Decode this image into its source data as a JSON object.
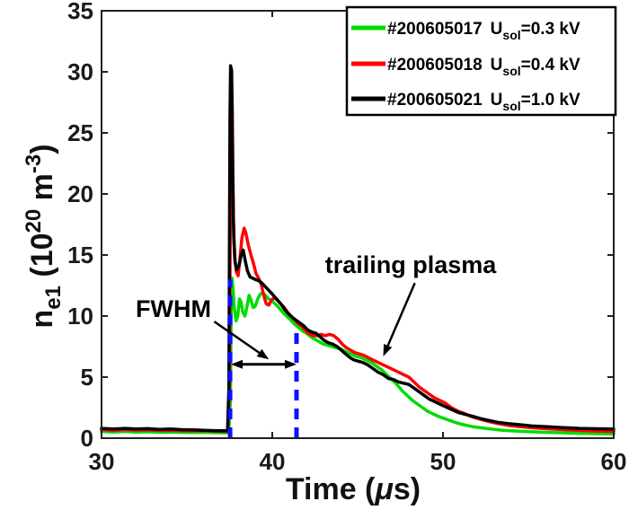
{
  "figure": {
    "background": "#ffffff",
    "axis_color": "#202020",
    "dash_color": "#1010FF"
  },
  "labels": {
    "xlabel_pre": "Time (",
    "xlabel_mu": "μ",
    "xlabel_post": "s)",
    "ylabel_n": "n",
    "ylabel_sub": "e1",
    "ylabel_open": " (10",
    "ylabel_exp": "20",
    "ylabel_m": " m",
    "ylabel_exp2": "-3",
    "ylabel_close": ")"
  },
  "legend": {
    "items": [
      {
        "shot": "#200605017",
        "u": "U",
        "sub": "sol",
        "value": "=0.3 kV",
        "color": "#00DC00"
      },
      {
        "shot": "#200605018",
        "u": "U",
        "sub": "sol",
        "value": "=0.4 kV",
        "color": "#FF0000"
      },
      {
        "shot": "#200605021",
        "u": "U",
        "sub": "sol",
        "value": "=1.0 kV",
        "color": "#000000"
      }
    ]
  },
  "chart_data": {
    "type": "line",
    "title": "",
    "xlabel": "Time (μs)",
    "ylabel": "n_e1 (10^20 m^-3)",
    "xlim": [
      30,
      60
    ],
    "ylim": [
      0,
      35
    ],
    "xticks": [
      30,
      40,
      50,
      60
    ],
    "yticks": [
      0,
      5,
      10,
      15,
      20,
      25,
      30,
      35
    ],
    "grid": false,
    "legend_position": "top-right",
    "series": [
      {
        "id": "green-0.3kV",
        "name": "#200605017 Usol=0.3 kV",
        "color": "#00DC00",
        "points": [
          [
            30,
            0.55
          ],
          [
            30.7,
            0.5
          ],
          [
            31.4,
            0.55
          ],
          [
            32,
            0.5
          ],
          [
            32.7,
            0.52
          ],
          [
            33.4,
            0.48
          ],
          [
            34,
            0.5
          ],
          [
            34.7,
            0.48
          ],
          [
            35.4,
            0.46
          ],
          [
            36,
            0.48
          ],
          [
            36.6,
            0.45
          ],
          [
            37.1,
            0.44
          ],
          [
            37.45,
            0.44
          ],
          [
            37.55,
            3
          ],
          [
            37.6,
            11.5
          ],
          [
            37.64,
            13.1
          ],
          [
            37.7,
            12.2
          ],
          [
            37.78,
            10.6
          ],
          [
            37.88,
            9.6
          ],
          [
            37.98,
            10.0
          ],
          [
            38.08,
            11.4
          ],
          [
            38.16,
            11.2
          ],
          [
            38.28,
            10.3
          ],
          [
            38.4,
            10.0
          ],
          [
            38.52,
            10.8
          ],
          [
            38.64,
            11.7
          ],
          [
            38.76,
            11.3
          ],
          [
            38.88,
            10.7
          ],
          [
            39.0,
            10.8
          ],
          [
            39.15,
            11.4
          ],
          [
            39.3,
            11.8
          ],
          [
            39.45,
            11.9
          ],
          [
            39.6,
            11.7
          ],
          [
            39.8,
            11.4
          ],
          [
            40.0,
            11.2
          ],
          [
            40.25,
            10.9
          ],
          [
            40.5,
            10.5
          ],
          [
            40.75,
            10.1
          ],
          [
            41.0,
            9.8
          ],
          [
            41.25,
            9.4
          ],
          [
            41.5,
            9.1
          ],
          [
            41.75,
            8.8
          ],
          [
            42.0,
            8.6
          ],
          [
            42.25,
            8.3
          ],
          [
            42.5,
            8.1
          ],
          [
            42.75,
            7.9
          ],
          [
            43.0,
            7.7
          ],
          [
            43.25,
            7.6
          ],
          [
            43.5,
            7.5
          ],
          [
            43.75,
            7.4
          ],
          [
            44.0,
            7.3
          ],
          [
            44.3,
            7.1
          ],
          [
            44.6,
            6.9
          ],
          [
            44.9,
            6.7
          ],
          [
            45.2,
            6.6
          ],
          [
            45.5,
            6.4
          ],
          [
            45.8,
            6.2
          ],
          [
            46.1,
            5.9
          ],
          [
            46.4,
            5.6
          ],
          [
            46.7,
            5.2
          ],
          [
            47.0,
            4.8
          ],
          [
            47.3,
            4.4
          ],
          [
            47.6,
            3.9
          ],
          [
            47.9,
            3.5
          ],
          [
            48.2,
            3.1
          ],
          [
            48.5,
            2.8
          ],
          [
            48.8,
            2.5
          ],
          [
            49.1,
            2.2
          ],
          [
            49.4,
            2.0
          ],
          [
            49.7,
            1.8
          ],
          [
            50.0,
            1.65
          ],
          [
            50.4,
            1.45
          ],
          [
            50.8,
            1.25
          ],
          [
            51.2,
            1.1
          ],
          [
            51.7,
            0.95
          ],
          [
            52.2,
            0.85
          ],
          [
            52.8,
            0.75
          ],
          [
            53.5,
            0.65
          ],
          [
            54.3,
            0.58
          ],
          [
            55.2,
            0.52
          ],
          [
            56,
            0.48
          ],
          [
            57,
            0.44
          ],
          [
            58,
            0.4
          ],
          [
            59,
            0.37
          ],
          [
            60,
            0.35
          ]
        ]
      },
      {
        "id": "red-0.4kV",
        "name": "#200605018 Usol=0.4 kV",
        "color": "#FF0000",
        "points": [
          [
            30,
            0.7
          ],
          [
            30.7,
            0.65
          ],
          [
            31.4,
            0.7
          ],
          [
            32,
            0.66
          ],
          [
            32.7,
            0.68
          ],
          [
            33.4,
            0.63
          ],
          [
            34,
            0.65
          ],
          [
            34.7,
            0.62
          ],
          [
            35.4,
            0.6
          ],
          [
            36,
            0.6
          ],
          [
            36.6,
            0.58
          ],
          [
            37.1,
            0.56
          ],
          [
            37.4,
            0.55
          ],
          [
            37.5,
            5
          ],
          [
            37.56,
            24
          ],
          [
            37.6,
            30.2
          ],
          [
            37.66,
            27
          ],
          [
            37.72,
            18
          ],
          [
            37.8,
            14.8
          ],
          [
            37.9,
            13.6
          ],
          [
            38.0,
            13.3
          ],
          [
            38.1,
            14.6
          ],
          [
            38.22,
            16.4
          ],
          [
            38.35,
            17.2
          ],
          [
            38.45,
            16.8
          ],
          [
            38.6,
            15.8
          ],
          [
            38.75,
            15.0
          ],
          [
            38.9,
            14.3
          ],
          [
            39.05,
            13.5
          ],
          [
            39.2,
            13.1
          ],
          [
            39.35,
            12.6
          ],
          [
            39.5,
            11.7
          ],
          [
            39.65,
            11.0
          ],
          [
            39.8,
            10.9
          ],
          [
            39.95,
            11.3
          ],
          [
            40.1,
            11.5
          ],
          [
            40.3,
            11.3
          ],
          [
            40.5,
            11.0
          ],
          [
            40.7,
            10.7
          ],
          [
            40.9,
            10.3
          ],
          [
            41.1,
            10.0
          ],
          [
            41.3,
            9.7
          ],
          [
            41.5,
            9.4
          ],
          [
            41.7,
            9.2
          ],
          [
            41.9,
            8.9
          ],
          [
            42.1,
            8.6
          ],
          [
            42.35,
            8.4
          ],
          [
            42.6,
            8.4
          ],
          [
            42.85,
            8.5
          ],
          [
            43.1,
            8.4
          ],
          [
            43.35,
            8.5
          ],
          [
            43.6,
            8.4
          ],
          [
            43.85,
            8.1
          ],
          [
            44.1,
            7.7
          ],
          [
            44.35,
            7.4
          ],
          [
            44.6,
            7.2
          ],
          [
            44.85,
            7.0
          ],
          [
            45.1,
            6.9
          ],
          [
            45.35,
            6.8
          ],
          [
            45.6,
            6.6
          ],
          [
            45.9,
            6.4
          ],
          [
            46.2,
            6.2
          ],
          [
            46.5,
            6.0
          ],
          [
            46.8,
            5.8
          ],
          [
            47.1,
            5.6
          ],
          [
            47.4,
            5.4
          ],
          [
            47.7,
            5.2
          ],
          [
            48.0,
            5.0
          ],
          [
            48.3,
            4.6
          ],
          [
            48.6,
            4.2
          ],
          [
            48.9,
            3.9
          ],
          [
            49.2,
            3.6
          ],
          [
            49.5,
            3.3
          ],
          [
            49.8,
            3.1
          ],
          [
            50.1,
            2.9
          ],
          [
            50.5,
            2.5
          ],
          [
            50.9,
            2.2
          ],
          [
            51.3,
            2.0
          ],
          [
            51.7,
            1.75
          ],
          [
            52.2,
            1.55
          ],
          [
            52.7,
            1.35
          ],
          [
            53.2,
            1.2
          ],
          [
            53.8,
            1.05
          ],
          [
            54.5,
            0.95
          ],
          [
            55.2,
            0.85
          ],
          [
            56,
            0.78
          ],
          [
            57,
            0.7
          ],
          [
            58,
            0.63
          ],
          [
            59,
            0.58
          ],
          [
            60,
            0.55
          ]
        ]
      },
      {
        "id": "black-1.0kV",
        "name": "#200605021 Usol=1.0 kV",
        "color": "#000000",
        "points": [
          [
            30,
            0.8
          ],
          [
            30.7,
            0.75
          ],
          [
            31.4,
            0.8
          ],
          [
            32,
            0.75
          ],
          [
            32.7,
            0.78
          ],
          [
            33.4,
            0.72
          ],
          [
            34,
            0.75
          ],
          [
            34.7,
            0.7
          ],
          [
            35.4,
            0.68
          ],
          [
            36,
            0.65
          ],
          [
            36.6,
            0.62
          ],
          [
            37.1,
            0.6
          ],
          [
            37.38,
            0.6
          ],
          [
            37.46,
            4
          ],
          [
            37.52,
            26
          ],
          [
            37.56,
            30.5
          ],
          [
            37.62,
            30.1
          ],
          [
            37.68,
            22
          ],
          [
            37.74,
            16.5
          ],
          [
            37.82,
            14.4
          ],
          [
            37.92,
            13.8
          ],
          [
            38.05,
            14.1
          ],
          [
            38.18,
            15.0
          ],
          [
            38.3,
            15.4
          ],
          [
            38.42,
            14.5
          ],
          [
            38.55,
            13.7
          ],
          [
            38.7,
            13.2
          ],
          [
            38.85,
            13.1
          ],
          [
            39.0,
            13.0
          ],
          [
            39.2,
            12.9
          ],
          [
            39.4,
            12.7
          ],
          [
            39.6,
            12.4
          ],
          [
            39.8,
            12.1
          ],
          [
            40.0,
            11.8
          ],
          [
            40.25,
            11.4
          ],
          [
            40.5,
            11.0
          ],
          [
            40.75,
            10.5
          ],
          [
            41.0,
            10.1
          ],
          [
            41.25,
            9.8
          ],
          [
            41.45,
            9.6
          ],
          [
            41.65,
            9.4
          ],
          [
            41.85,
            9.2
          ],
          [
            42.05,
            8.9
          ],
          [
            42.3,
            8.7
          ],
          [
            42.55,
            8.6
          ],
          [
            42.8,
            8.3
          ],
          [
            43.05,
            8.0
          ],
          [
            43.3,
            7.8
          ],
          [
            43.55,
            7.7
          ],
          [
            43.8,
            7.5
          ],
          [
            44.05,
            7.2
          ],
          [
            44.3,
            6.9
          ],
          [
            44.55,
            6.6
          ],
          [
            44.8,
            6.4
          ],
          [
            45.05,
            6.3
          ],
          [
            45.3,
            6.2
          ],
          [
            45.6,
            6.0
          ],
          [
            45.9,
            5.7
          ],
          [
            46.2,
            5.4
          ],
          [
            46.5,
            5.2
          ],
          [
            46.8,
            4.9
          ],
          [
            47.1,
            4.8
          ],
          [
            47.4,
            4.6
          ],
          [
            47.7,
            4.5
          ],
          [
            48.0,
            4.4
          ],
          [
            48.3,
            4.1
          ],
          [
            48.6,
            3.8
          ],
          [
            48.9,
            3.5
          ],
          [
            49.2,
            3.2
          ],
          [
            49.5,
            3.0
          ],
          [
            49.8,
            2.8
          ],
          [
            50.1,
            2.6
          ],
          [
            50.5,
            2.35
          ],
          [
            50.9,
            2.1
          ],
          [
            51.3,
            1.95
          ],
          [
            51.7,
            1.8
          ],
          [
            52.2,
            1.6
          ],
          [
            52.7,
            1.45
          ],
          [
            53.2,
            1.3
          ],
          [
            53.8,
            1.2
          ],
          [
            54.5,
            1.1
          ],
          [
            55.2,
            1.0
          ],
          [
            56,
            0.95
          ],
          [
            57,
            0.87
          ],
          [
            58,
            0.8
          ],
          [
            59,
            0.77
          ],
          [
            60,
            0.75
          ]
        ]
      }
    ],
    "annotations": {
      "fwhm": {
        "label": "FWHM",
        "arrow": [
          36.6,
          9.55,
          39.8,
          6.45
        ]
      },
      "fwhm_span": {
        "x1": 37.58,
        "x2": 41.42,
        "y": 6.05
      },
      "trailing": {
        "label": "trailing plasma",
        "arrow": [
          48.35,
          12.7,
          46.5,
          6.7
        ]
      },
      "dashed_lines": [
        {
          "x": 37.53,
          "y1": 0,
          "y2": 13.0
        },
        {
          "x": 41.42,
          "y1": 0,
          "y2": 8.9
        }
      ]
    }
  }
}
